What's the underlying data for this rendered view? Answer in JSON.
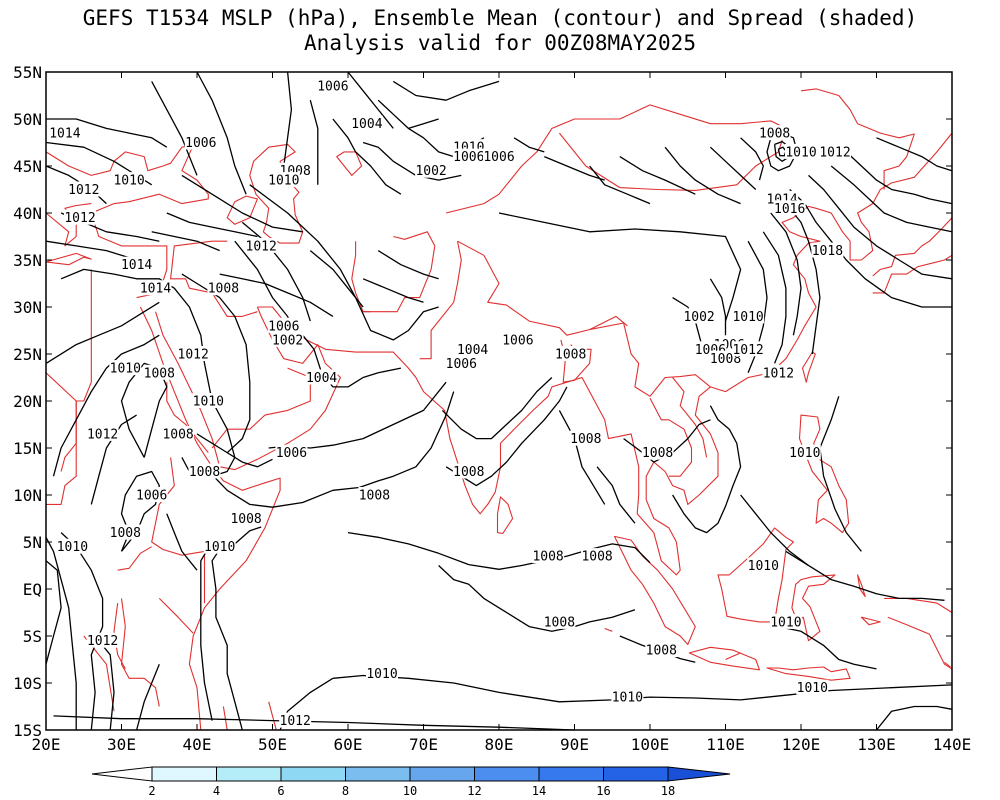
{
  "header": {
    "title_line1": "GEFS T1534 MSLP (hPa), Ensemble Mean (contour) and Spread (shaded)",
    "title_line2": "Analysis valid for 00Z08MAY2025"
  },
  "axes": {
    "lat_labels": [
      "55N",
      "50N",
      "45N",
      "40N",
      "35N",
      "30N",
      "25N",
      "20N",
      "15N",
      "10N",
      "5N",
      "EQ",
      "5S",
      "10S",
      "15S"
    ],
    "lon_labels": [
      "20E",
      "30E",
      "40E",
      "50E",
      "60E",
      "70E",
      "80E",
      "90E",
      "100E",
      "110E",
      "120E",
      "130E",
      "140E"
    ]
  },
  "contour_labels": [
    {
      "text": "1006",
      "lon": 58.0,
      "lat": 53.5
    },
    {
      "text": "1004",
      "lon": 62.5,
      "lat": 49.5
    },
    {
      "text": "1010",
      "lon": 76.0,
      "lat": 47.0
    },
    {
      "text": "1006",
      "lon": 76.0,
      "lat": 46.0
    },
    {
      "text": "1006",
      "lon": 80.0,
      "lat": 46.0
    },
    {
      "text": "1002",
      "lon": 71.0,
      "lat": 44.5
    },
    {
      "text": "1008",
      "lon": 116.5,
      "lat": 48.5
    },
    {
      "text": "1010",
      "lon": 120.0,
      "lat": 46.5
    },
    {
      "text": "1012",
      "lon": 124.5,
      "lat": 46.5
    },
    {
      "text": "1014",
      "lon": 22.5,
      "lat": 48.5
    },
    {
      "text": "1006",
      "lon": 40.5,
      "lat": 47.5
    },
    {
      "text": "1008",
      "lon": 53.0,
      "lat": 44.5
    },
    {
      "text": "1010",
      "lon": 51.5,
      "lat": 43.5
    },
    {
      "text": "1010",
      "lon": 31.0,
      "lat": 43.5
    },
    {
      "text": "1012",
      "lon": 25.0,
      "lat": 42.5
    },
    {
      "text": "1012",
      "lon": 24.5,
      "lat": 39.5
    },
    {
      "text": "1012",
      "lon": 48.5,
      "lat": 36.5
    },
    {
      "text": "1014",
      "lon": 117.5,
      "lat": 41.5
    },
    {
      "text": "1016",
      "lon": 118.5,
      "lat": 40.5
    },
    {
      "text": "1018",
      "lon": 123.5,
      "lat": 36.0
    },
    {
      "text": "1014",
      "lon": 32.0,
      "lat": 34.5
    },
    {
      "text": "1014",
      "lon": 34.5,
      "lat": 32.0
    },
    {
      "text": "1008",
      "lon": 43.5,
      "lat": 32.0
    },
    {
      "text": "1006",
      "lon": 51.5,
      "lat": 28.0
    },
    {
      "text": "1002",
      "lon": 52.0,
      "lat": 26.5
    },
    {
      "text": "1004",
      "lon": 76.5,
      "lat": 25.5
    },
    {
      "text": "1006",
      "lon": 82.5,
      "lat": 26.5
    },
    {
      "text": "1008",
      "lon": 89.5,
      "lat": 25.0
    },
    {
      "text": "1006",
      "lon": 75.0,
      "lat": 24.0
    },
    {
      "text": "1002",
      "lon": 106.5,
      "lat": 29.0
    },
    {
      "text": "1010",
      "lon": 113.0,
      "lat": 29.0
    },
    {
      "text": "1006",
      "lon": 110.5,
      "lat": 26.0
    },
    {
      "text": "1006",
      "lon": 108.0,
      "lat": 25.5
    },
    {
      "text": "1008",
      "lon": 110.0,
      "lat": 24.5
    },
    {
      "text": "1012",
      "lon": 113.0,
      "lat": 25.5
    },
    {
      "text": "1012",
      "lon": 39.5,
      "lat": 25.0
    },
    {
      "text": "1010",
      "lon": 30.5,
      "lat": 23.5
    },
    {
      "text": "1008",
      "lon": 35.0,
      "lat": 23.0
    },
    {
      "text": "1004",
      "lon": 56.5,
      "lat": 22.5
    },
    {
      "text": "1012",
      "lon": 117.0,
      "lat": 23.0
    },
    {
      "text": "1010",
      "lon": 41.5,
      "lat": 20.0
    },
    {
      "text": "1012",
      "lon": 27.5,
      "lat": 16.5
    },
    {
      "text": "1008",
      "lon": 37.5,
      "lat": 16.5
    },
    {
      "text": "1006",
      "lon": 52.5,
      "lat": 14.5
    },
    {
      "text": "1008",
      "lon": 91.5,
      "lat": 16.0
    },
    {
      "text": "1008",
      "lon": 101.0,
      "lat": 14.5
    },
    {
      "text": "1010",
      "lon": 120.5,
      "lat": 14.5
    },
    {
      "text": "1008",
      "lon": 41.0,
      "lat": 12.5
    },
    {
      "text": "1008",
      "lon": 76.0,
      "lat": 12.5
    },
    {
      "text": "1006",
      "lon": 34.0,
      "lat": 10.0
    },
    {
      "text": "1008",
      "lon": 63.5,
      "lat": 10.0
    },
    {
      "text": "1008",
      "lon": 46.5,
      "lat": 7.5
    },
    {
      "text": "1008",
      "lon": 30.5,
      "lat": 6.0
    },
    {
      "text": "1010",
      "lon": 23.5,
      "lat": 4.5
    },
    {
      "text": "1010",
      "lon": 43.0,
      "lat": 4.5
    },
    {
      "text": "1008",
      "lon": 86.5,
      "lat": 3.5
    },
    {
      "text": "1008",
      "lon": 93.0,
      "lat": 3.5
    },
    {
      "text": "1010",
      "lon": 115.0,
      "lat": 2.5
    },
    {
      "text": "1008",
      "lon": 88.0,
      "lat": -3.5
    },
    {
      "text": "1010",
      "lon": 118.0,
      "lat": -3.5
    },
    {
      "text": "1012",
      "lon": 27.5,
      "lat": -5.5
    },
    {
      "text": "1008",
      "lon": 101.5,
      "lat": -6.5
    },
    {
      "text": "1010",
      "lon": 64.5,
      "lat": -9.0
    },
    {
      "text": "1010",
      "lon": 121.5,
      "lat": -10.5
    },
    {
      "text": "1010",
      "lon": 97.0,
      "lat": -11.5
    },
    {
      "text": "1012",
      "lon": 53.0,
      "lat": -14.0
    }
  ],
  "colorbar": {
    "labels": [
      "2",
      "4",
      "6",
      "8",
      "10",
      "12",
      "14",
      "16",
      "18"
    ],
    "colors": [
      "#ffffff",
      "#dff8ff",
      "#b4ecf8",
      "#8ed8f4",
      "#7cbdf0",
      "#66a6ee",
      "#4c8ef0",
      "#3678ee",
      "#2463e6",
      "#1a4fd8"
    ]
  },
  "colors": {
    "coastline": "#e03030",
    "contour": "#000000"
  }
}
